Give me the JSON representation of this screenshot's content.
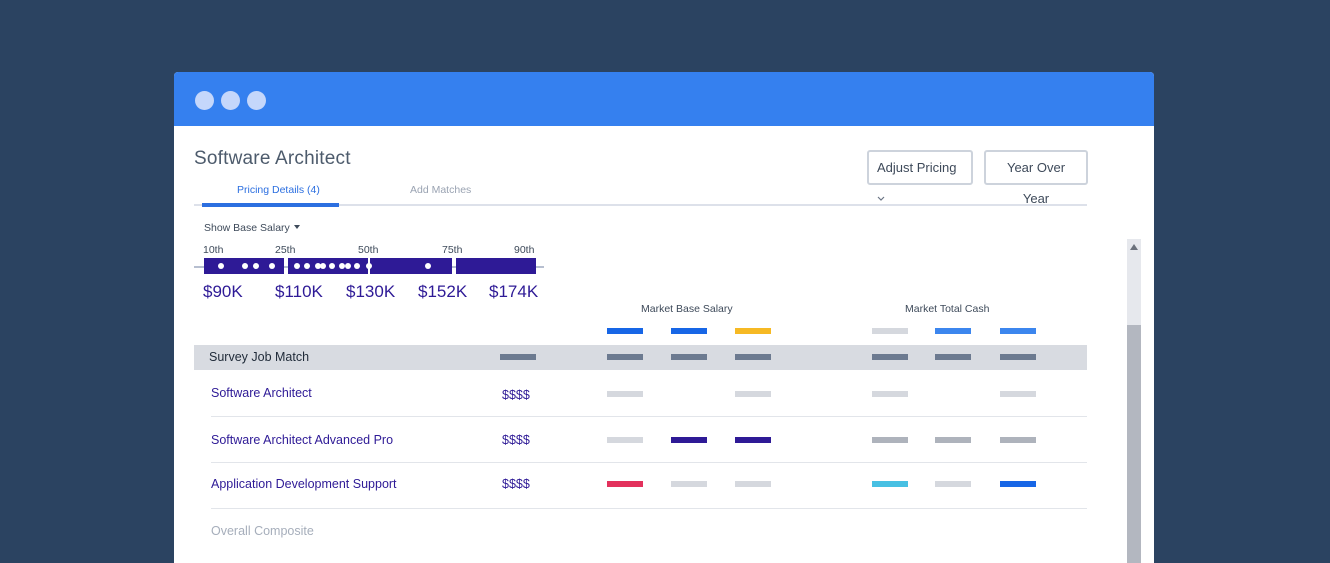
{
  "window": {
    "title": "Software Architect",
    "buttons": {
      "adjust_pricing": "Adjust Pricing",
      "year_over_year": "Year Over Year"
    },
    "tabs": [
      {
        "label": "Pricing Details (4)",
        "active": true
      },
      {
        "label": "Add Matches",
        "active": false
      }
    ]
  },
  "salary_toggle": {
    "label": "Show Base Salary"
  },
  "percentiles": {
    "labels": [
      "10th",
      "25th",
      "50th",
      "75th",
      "90th"
    ],
    "values": [
      "$90K",
      "$110K",
      "$130K",
      "$152K",
      "$174K"
    ]
  },
  "columns": {
    "market_base_salary": "Market Base Salary",
    "market_total_cash": "Market Total Cash"
  },
  "table": {
    "header": "Survey Job Match",
    "rows": [
      {
        "name": "Software Architect",
        "price": "$$$$"
      },
      {
        "name": "Software Architect Advanced Pro",
        "price": "$$$$"
      },
      {
        "name": "Application Development Support",
        "price": "$$$$"
      }
    ],
    "composite": "Overall Composite"
  },
  "colors": {
    "titlebar": "#3580ef",
    "background": "#2b4361",
    "accent_purple": "#2e1a96",
    "blue": "#1766e6",
    "light_blue": "#3c86ee",
    "yellow": "#f6b924",
    "red": "#e3315c",
    "cyan": "#47c0e3",
    "gray": "#6c7a90",
    "light_gray": "#d5d8de",
    "mid_gray": "#aeb3bc"
  }
}
